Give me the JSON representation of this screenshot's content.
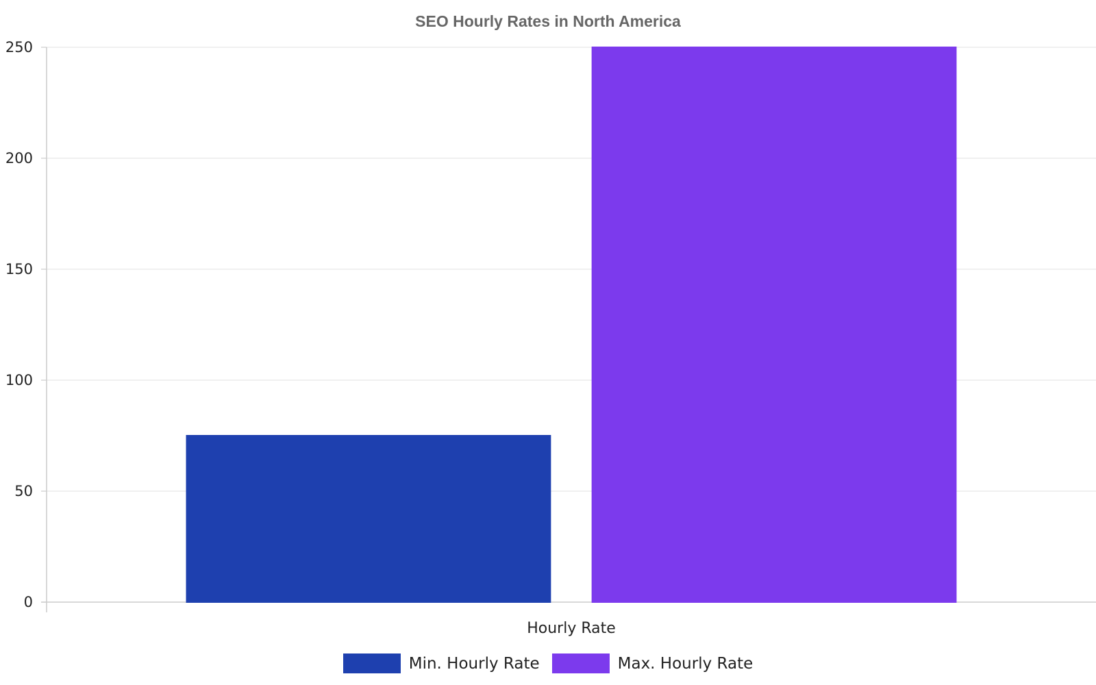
{
  "chart_data": {
    "type": "bar",
    "title": "SEO Hourly Rates in North America",
    "categories": [
      "Hourly Rate"
    ],
    "series": [
      {
        "name": "Min. Hourly Rate",
        "values": [
          75
        ],
        "color": "#1e40af"
      },
      {
        "name": "Max. Hourly Rate",
        "values": [
          250
        ],
        "color": "#7c3aed"
      }
    ],
    "xlabel": "",
    "ylabel": "",
    "ylim": [
      0,
      250
    ],
    "yticks": [
      0,
      50,
      100,
      150,
      200,
      250
    ],
    "grid": true,
    "legend_position": "bottom"
  }
}
